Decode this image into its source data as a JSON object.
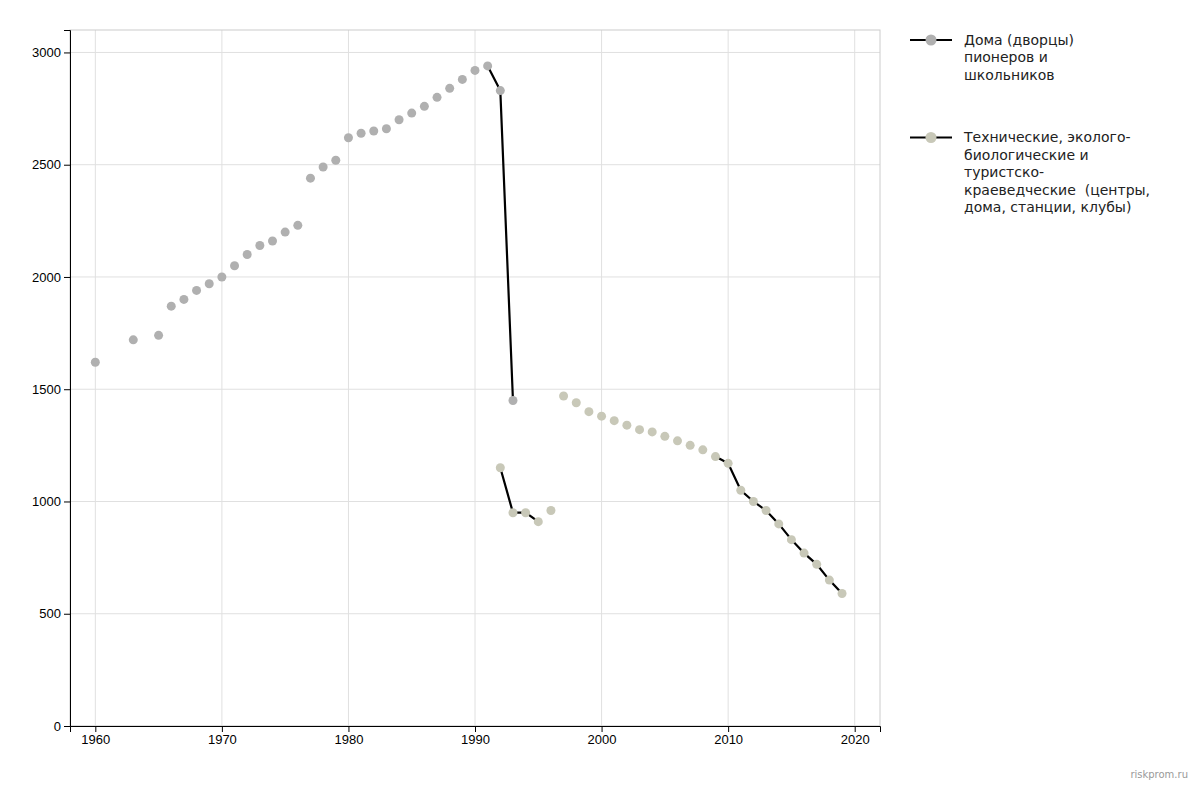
{
  "chart_data": {
    "type": "scatter",
    "series": [
      {
        "name": "Дома (дворцы)\nпионеров и\nшкольников",
        "type": "scatter",
        "marker": "circle",
        "color": "#b0b0b0",
        "x": [
          1960,
          1963,
          1965,
          1966,
          1967,
          1968,
          1969,
          1970,
          1971,
          1972,
          1973,
          1974,
          1975,
          1976,
          1977,
          1978,
          1979,
          1980,
          1981,
          1982,
          1983,
          1984,
          1985,
          1986,
          1987,
          1988,
          1989,
          1990,
          1991,
          1992,
          1993
        ],
        "values": [
          1620,
          1720,
          1740,
          1870,
          1900,
          1940,
          1970,
          2000,
          2050,
          2100,
          2140,
          2160,
          2200,
          2230,
          2440,
          2490,
          2520,
          2620,
          2640,
          2650,
          2660,
          2700,
          2730,
          2760,
          2800,
          2840,
          2880,
          2920,
          2940,
          2830,
          1450
        ]
      },
      {
        "name": "Технические, эколого-\nбиологические и\nтуристско-\nкраеведческие  (центры,\nдома, станции, клубы)",
        "type": "scatter",
        "marker": "circle",
        "color": "#c8c8b8",
        "x": [
          1992,
          1993,
          1994,
          1995,
          1996,
          1997,
          1998,
          1999,
          2000,
          2001,
          2002,
          2003,
          2004,
          2005,
          2006,
          2007,
          2008,
          2009,
          2010,
          2011,
          2012,
          2013,
          2014,
          2015,
          2016,
          2017,
          2018,
          2019
        ],
        "values": [
          1150,
          950,
          950,
          910,
          960,
          1470,
          1440,
          1400,
          1380,
          1360,
          1340,
          1320,
          1310,
          1290,
          1270,
          1250,
          1230,
          1200,
          1170,
          1050,
          1000,
          960,
          900,
          830,
          770,
          720,
          650,
          590
        ]
      },
      {
        "type": "line",
        "line_style": "solid",
        "color": "#000000",
        "x": [
          1960,
          1963,
          1965,
          1966,
          1967,
          1968,
          1969,
          1970,
          1971,
          1972,
          1973,
          1974,
          1975,
          1976,
          1977,
          1978,
          1979,
          1980,
          1981,
          1982,
          1983,
          1984,
          1985,
          1986,
          1987,
          1988,
          1989,
          1990,
          1991,
          1992,
          1993
        ],
        "values": [
          null,
          null,
          null,
          null,
          null,
          null,
          null,
          null,
          null,
          null,
          null,
          null,
          null,
          null,
          null,
          null,
          null,
          null,
          null,
          null,
          null,
          null,
          null,
          null,
          null,
          null,
          null,
          null,
          2940,
          2830,
          1450
        ]
      },
      {
        "type": "line",
        "line_style": "solid",
        "color": "#000000",
        "x": [
          1992,
          1993,
          1994,
          1995,
          1996,
          1997,
          1998,
          1999,
          2000,
          2001,
          2002,
          2003,
          2004,
          2005,
          2006,
          2007,
          2008,
          2009,
          2010,
          2011,
          2012,
          2013,
          2014,
          2015,
          2016,
          2017,
          2018,
          2019
        ],
        "values": [
          1150,
          950,
          950,
          910,
          null,
          null,
          null,
          null,
          null,
          null,
          null,
          null,
          null,
          null,
          null,
          null,
          null,
          1200,
          1170,
          1050,
          1000,
          960,
          900,
          830,
          770,
          720,
          650,
          590
        ]
      }
    ],
    "xlim": [
      1958,
      2022
    ],
    "ylim": [
      0,
      3100
    ],
    "xticks": [
      1960,
      1970,
      1980,
      1990,
      2000,
      2010,
      2020
    ],
    "yticks": [
      0,
      500,
      1000,
      1500,
      2000,
      2500,
      3000
    ],
    "grid": true,
    "legend": "right",
    "annotations": [
      "riskprom.ru"
    ]
  }
}
